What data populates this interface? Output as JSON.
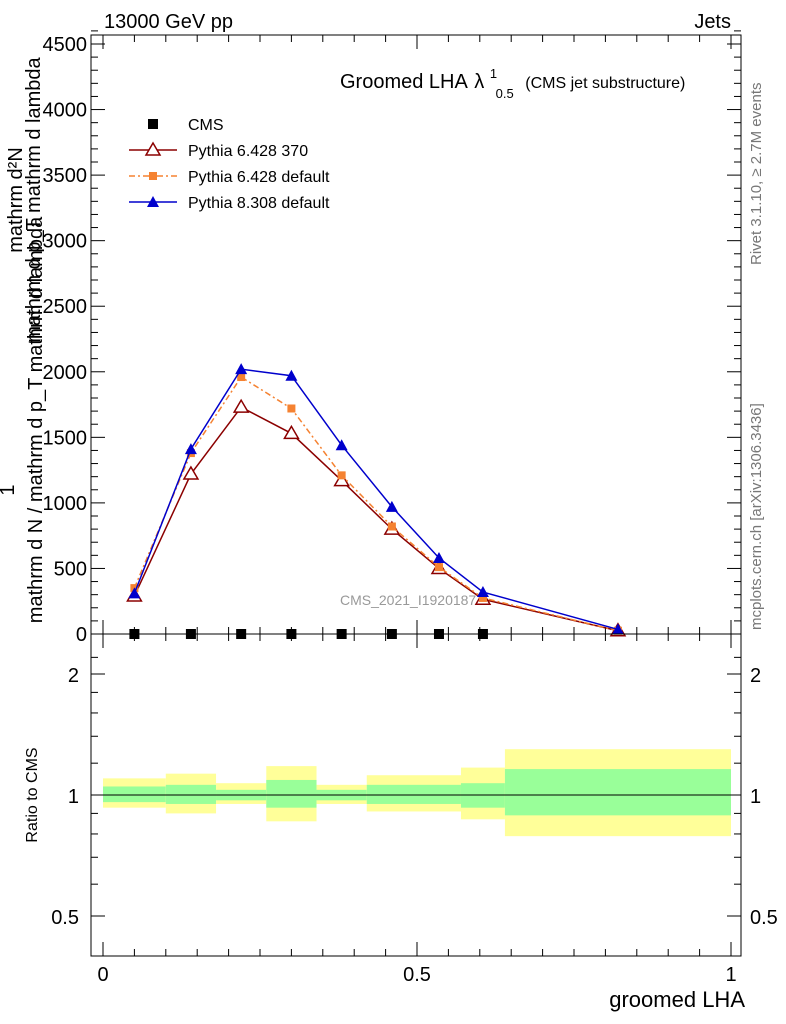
{
  "header": {
    "left": "13000 GeV pp",
    "right": "Jets"
  },
  "side": {
    "rivet": "Rivet 3.1.10, ≥ 2.7M events",
    "mcplots": "mcplots.cern.ch [arXiv:1306.3436]"
  },
  "colors": {
    "cms": "#000000",
    "pythia6_370": "#8b0000",
    "pythia6_default": "#f58231",
    "pythia8": "#0000cc",
    "band_inner": "#99ff99",
    "band_outer": "#ffff99"
  },
  "chart_data": [
    {
      "type": "line",
      "title": "Groomed LHA",
      "title_symbol": "λ",
      "title_sup": "1",
      "title_sub": "0.5",
      "title_suffix": "(CMS jet substructure)",
      "watermark": "CMS_2021_I1920187",
      "ylabel_top": "1",
      "ylabel_bottom": "mathrm d N / mathrm d p_T mathrm d lambda",
      "ylabel_frac_num": "mathrm d²N",
      "ylabel_frac_den": "mathrm d p_T mathrm d lambda",
      "xlim": [
        0,
        1
      ],
      "ylim": [
        0,
        4600
      ],
      "yticks": [
        0,
        500,
        1000,
        1500,
        2000,
        2500,
        3000,
        3500,
        4000,
        4500
      ],
      "legend_position": "top-left",
      "series": [
        {
          "name": "CMS",
          "marker": "square",
          "x": [
            0.05,
            0.14,
            0.22,
            0.3,
            0.38,
            0.46,
            0.535,
            0.605
          ],
          "y": [
            0,
            0,
            0,
            0,
            0,
            0,
            0,
            0
          ]
        },
        {
          "name": "Pythia 6.428 370",
          "marker": "open-triangle",
          "x": [
            0.05,
            0.14,
            0.22,
            0.3,
            0.38,
            0.46,
            0.535,
            0.605,
            0.82
          ],
          "y": [
            290,
            1220,
            1730,
            1530,
            1170,
            800,
            500,
            265,
            25
          ]
        },
        {
          "name": "Pythia 6.428 default",
          "marker": "square-small",
          "x": [
            0.05,
            0.14,
            0.22,
            0.3,
            0.38,
            0.46,
            0.535,
            0.605,
            0.82
          ],
          "y": [
            350,
            1380,
            1960,
            1720,
            1210,
            820,
            510,
            275,
            25
          ]
        },
        {
          "name": "Pythia 8.308 default",
          "marker": "filled-triangle",
          "x": [
            0.05,
            0.14,
            0.22,
            0.3,
            0.38,
            0.46,
            0.535,
            0.605,
            0.82
          ],
          "y": [
            310,
            1410,
            2020,
            1970,
            1440,
            970,
            580,
            320,
            35
          ]
        }
      ]
    },
    {
      "type": "area",
      "xlabel": "groomed LHA",
      "ylabel": "Ratio to CMS",
      "xlim": [
        0,
        1
      ],
      "ylim": [
        0.4,
        2.4
      ],
      "ylog": true,
      "yticks": [
        0.5,
        1,
        2
      ],
      "xticks": [
        0,
        0.5,
        1
      ],
      "reference_line": 1,
      "bands": [
        {
          "x0": 0.0,
          "x1": 0.1,
          "inner": [
            0.96,
            1.05
          ],
          "outer": [
            0.93,
            1.1
          ]
        },
        {
          "x0": 0.1,
          "x1": 0.18,
          "inner": [
            0.95,
            1.06
          ],
          "outer": [
            0.9,
            1.13
          ]
        },
        {
          "x0": 0.18,
          "x1": 0.26,
          "inner": [
            0.97,
            1.03
          ],
          "outer": [
            0.95,
            1.07
          ]
        },
        {
          "x0": 0.26,
          "x1": 0.34,
          "inner": [
            0.93,
            1.09
          ],
          "outer": [
            0.86,
            1.18
          ]
        },
        {
          "x0": 0.34,
          "x1": 0.42,
          "inner": [
            0.97,
            1.03
          ],
          "outer": [
            0.95,
            1.06
          ]
        },
        {
          "x0": 0.42,
          "x1": 0.5,
          "inner": [
            0.95,
            1.06
          ],
          "outer": [
            0.91,
            1.12
          ]
        },
        {
          "x0": 0.5,
          "x1": 0.57,
          "inner": [
            0.95,
            1.06
          ],
          "outer": [
            0.91,
            1.12
          ]
        },
        {
          "x0": 0.57,
          "x1": 0.64,
          "inner": [
            0.93,
            1.07
          ],
          "outer": [
            0.87,
            1.17
          ]
        },
        {
          "x0": 0.64,
          "x1": 1.0,
          "inner": [
            0.89,
            1.16
          ],
          "outer": [
            0.79,
            1.3
          ]
        }
      ]
    }
  ]
}
